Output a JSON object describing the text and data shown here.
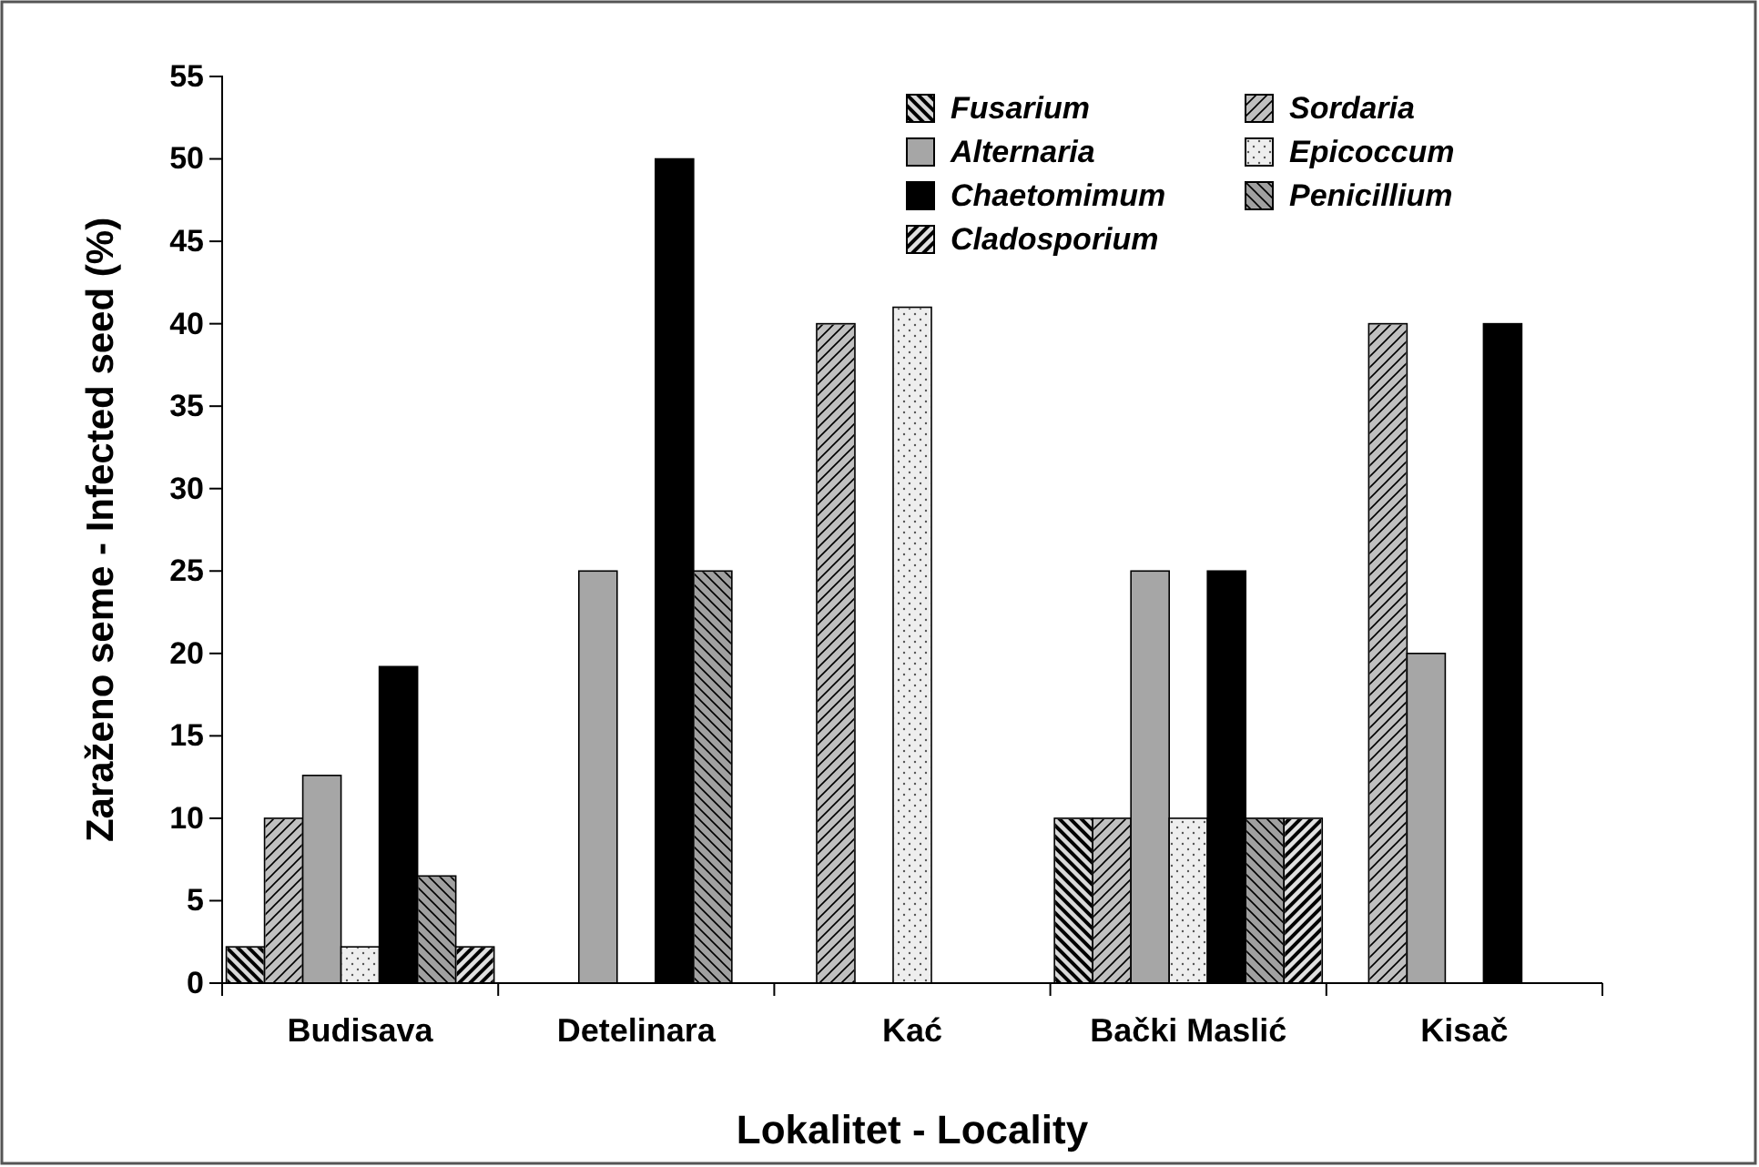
{
  "chart_data": {
    "type": "bar",
    "xlabel": "Lokalitet - Locality",
    "ylabel": "Zaraženo seme - Infected seed (%)",
    "categories": [
      "Budisava",
      "Detelinara",
      "Kać",
      "Bački Maslić",
      "Kisač"
    ],
    "ylim": [
      0,
      55
    ],
    "yticks": [
      0,
      5,
      10,
      15,
      20,
      25,
      30,
      35,
      40,
      45,
      50,
      55
    ],
    "grid": false,
    "legend": "top right",
    "series": [
      {
        "name": "Fusarium",
        "color": "#d9d9d9",
        "values": [
          2.2,
          0,
          0,
          10,
          0
        ]
      },
      {
        "name": "Sordaria",
        "color": "#c0c0c0",
        "values": [
          10,
          0,
          40,
          10,
          40
        ]
      },
      {
        "name": "Alternaria",
        "color": "#a6a6a6",
        "values": [
          12.6,
          25,
          0,
          25,
          20
        ]
      },
      {
        "name": "Epicoccum",
        "color": "#eeeeee",
        "values": [
          2.2,
          0,
          41,
          10,
          0
        ]
      },
      {
        "name": "Chaetomimum",
        "color": "#000000",
        "values": [
          19.2,
          50,
          0,
          25,
          40
        ]
      },
      {
        "name": "Penicillium",
        "color": "#a0a0a0",
        "values": [
          6.5,
          25,
          0,
          10,
          0
        ]
      },
      {
        "name": "Cladosporium",
        "color": "#e0e0e0",
        "values": [
          2.2,
          0,
          0,
          10,
          0
        ]
      }
    ]
  }
}
